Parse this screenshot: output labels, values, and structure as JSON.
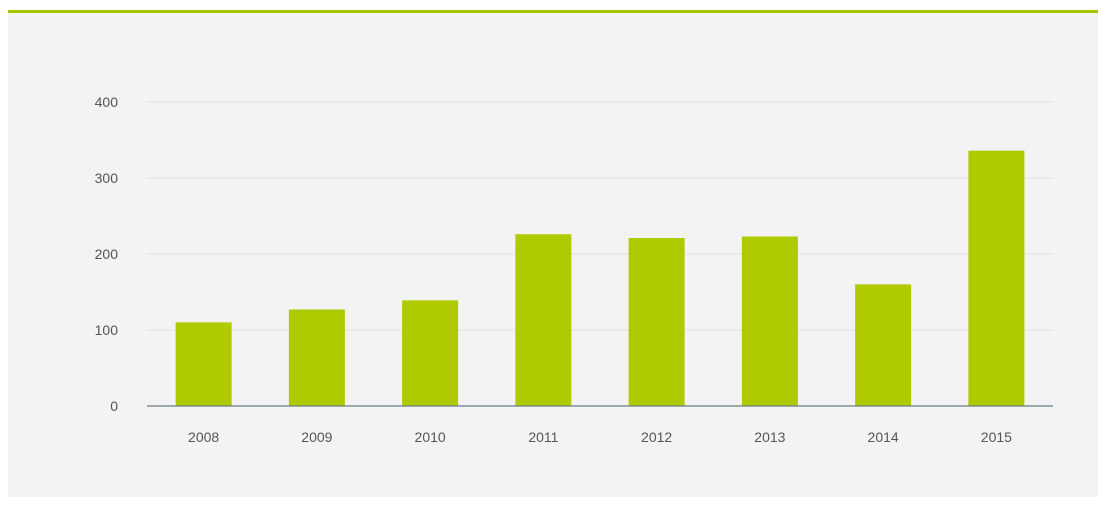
{
  "colors": {
    "bar": "#b0ca00",
    "accent_line": "#a9c400",
    "background": "#f3f3f3",
    "grid": "#e2e2e2",
    "axis": "#6b7c86",
    "text": "#555555"
  },
  "chart_data": {
    "type": "bar",
    "categories": [
      "2008",
      "2009",
      "2010",
      "2011",
      "2012",
      "2013",
      "2014",
      "2015"
    ],
    "values": [
      110,
      127,
      139,
      226,
      221,
      223,
      160,
      336
    ],
    "y_ticks": [
      "0",
      "100",
      "200",
      "300",
      "400"
    ],
    "ylim": [
      0,
      400
    ],
    "grid": true,
    "legend": "none",
    "title": "",
    "xlabel": "",
    "ylabel": ""
  }
}
